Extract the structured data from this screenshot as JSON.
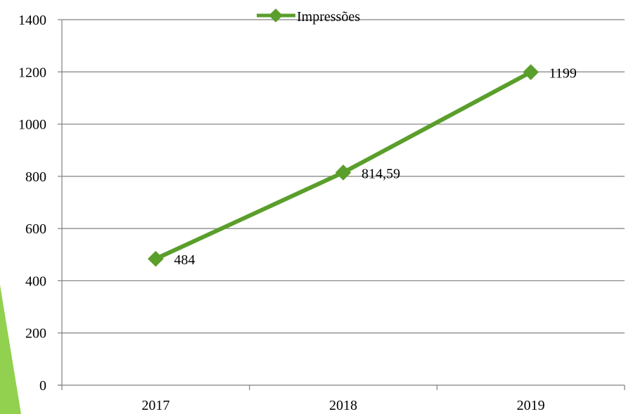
{
  "chart_data": {
    "type": "line",
    "categories": [
      "2017",
      "2018",
      "2019"
    ],
    "series": [
      {
        "name": "Impressões",
        "values": [
          484,
          814.59,
          1199
        ],
        "value_labels": [
          "484",
          "814,59",
          "1199"
        ]
      }
    ],
    "y_ticks": [
      "0",
      "200",
      "400",
      "600",
      "800",
      "1000",
      "1200",
      "1400"
    ],
    "ylim": [
      0,
      1400
    ],
    "grid": "horizontal",
    "legend_position": "top",
    "colors": {
      "series": "#5A9E2B",
      "grid": "#808080",
      "decoration": "#92D050"
    }
  }
}
